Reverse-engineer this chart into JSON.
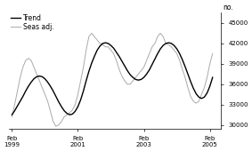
{
  "title": "",
  "legend_labels": [
    "Trend",
    "Seas adj."
  ],
  "legend_colors": [
    "#000000",
    "#aaaaaa"
  ],
  "ylabel": "no.",
  "ylim": [
    29500,
    46500
  ],
  "yticks": [
    30000,
    33000,
    36000,
    39000,
    42000,
    45000
  ],
  "ytick_labels": [
    "30000",
    "33000",
    "36000",
    "39000",
    "42000",
    "45000"
  ],
  "xtick_positions": [
    0,
    24,
    48,
    72
  ],
  "xtick_labels": [
    "Feb\n1999",
    "Feb\n2001",
    "Feb\n2003",
    "Feb\n2005"
  ],
  "xlim": [
    -1,
    76
  ],
  "background_color": "#ffffff",
  "trend": [
    31500,
    32100,
    32800,
    33500,
    34200,
    35000,
    35700,
    36300,
    36800,
    37100,
    37200,
    37100,
    36800,
    36300,
    35700,
    35000,
    34200,
    33400,
    32700,
    32100,
    31700,
    31500,
    31600,
    32000,
    32700,
    33700,
    35000,
    36500,
    37900,
    39100,
    40100,
    41000,
    41600,
    42000,
    42100,
    42000,
    41700,
    41300,
    40700,
    40100,
    39400,
    38700,
    38000,
    37400,
    37000,
    36700,
    36600,
    36700,
    37000,
    37500,
    38100,
    38900,
    39700,
    40500,
    41200,
    41700,
    42000,
    42100,
    42000,
    41700,
    41200,
    40500,
    39600,
    38600,
    37500,
    36400,
    35400,
    34600,
    34100,
    33900,
    34100,
    34700,
    35700,
    37000
  ],
  "seas_adj": [
    31200,
    33000,
    35000,
    37000,
    38500,
    39500,
    39800,
    39500,
    38500,
    37500,
    36500,
    35500,
    34500,
    33500,
    32000,
    30500,
    29800,
    30000,
    30500,
    31200,
    31500,
    31800,
    32200,
    33000,
    34500,
    36500,
    38500,
    41000,
    43000,
    43500,
    43000,
    42500,
    42000,
    41800,
    41500,
    41500,
    41000,
    40500,
    39500,
    38200,
    37200,
    36500,
    36000,
    36000,
    36500,
    37000,
    37500,
    38000,
    38500,
    39500,
    40500,
    41500,
    42000,
    43000,
    43500,
    43000,
    42000,
    41800,
    41500,
    41000,
    40500,
    39500,
    38200,
    37000,
    35500,
    34200,
    33500,
    33200,
    33500,
    34500,
    35500,
    37000,
    39000,
    40500
  ]
}
